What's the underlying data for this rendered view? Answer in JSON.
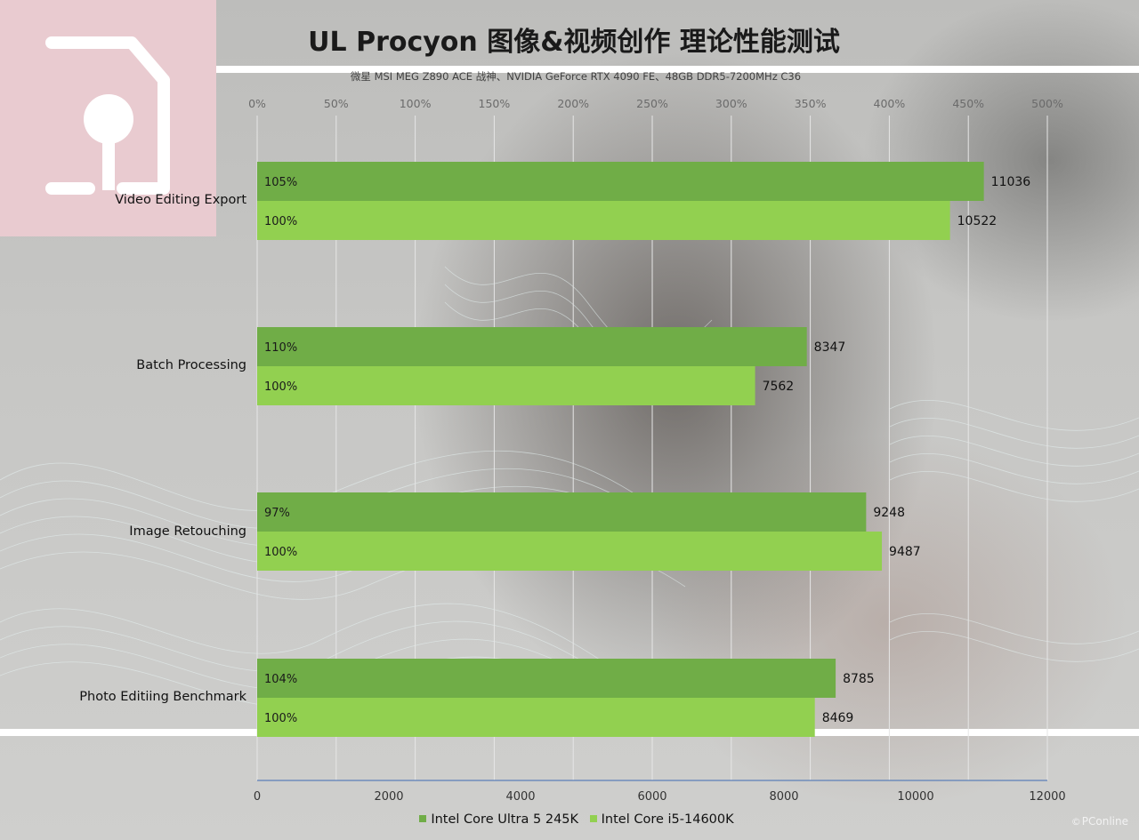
{
  "title": "UL Procyon  图像&视频创作 理论性能测试",
  "subtitle": "微星 MSI MEG Z890 ACE 战神、NVIDIA  GeForce RTX 4090  FE、48GB DDR5-7200MHz  C36",
  "watermark": "PConline",
  "colors": {
    "series_dark": "#70ad47",
    "series_light": "#92d050",
    "logo_bg": "#e9cbd0",
    "axis_line": "#5b7fb8"
  },
  "chart_data": {
    "type": "bar",
    "orientation": "horizontal",
    "categories": [
      "Video Editing Export",
      "Batch Processing",
      "Image Retouching",
      "Photo Editiing Benchmark"
    ],
    "series": [
      {
        "name": "Intel Core Ultra 5 245K",
        "color": "#70ad47",
        "values": [
          11036,
          8347,
          9248,
          8785
        ],
        "percent_labels": [
          "105%",
          "110%",
          "97%",
          "104%"
        ]
      },
      {
        "name": "Intel Core i5-14600K",
        "color": "#92d050",
        "values": [
          10522,
          7562,
          9487,
          8469
        ],
        "percent_labels": [
          "100%",
          "100%",
          "100%",
          "100%"
        ]
      }
    ],
    "bottom_axis": {
      "range": [
        0,
        12000
      ],
      "ticks": [
        "0",
        "2000",
        "4000",
        "6000",
        "8000",
        "10000",
        "12000"
      ]
    },
    "top_axis": {
      "range": [
        0,
        5
      ],
      "ticks": [
        "0%",
        "50%",
        "100%",
        "150%",
        "200%",
        "250%",
        "300%",
        "350%",
        "400%",
        "450%",
        "500%"
      ]
    },
    "grid": true,
    "legend_position": "bottom"
  }
}
